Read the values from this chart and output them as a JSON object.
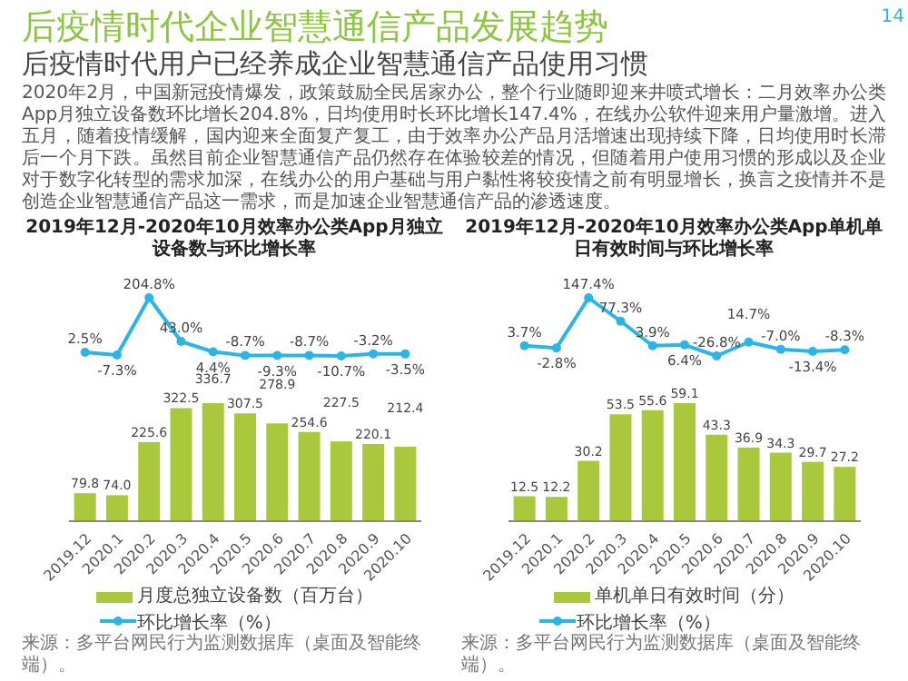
{
  "chart_data": [
    {
      "type": "other",
      "title": "后疫情时代企业智慧通信产品发展趋势",
      "subtitle": "后疫情时代用户已经养成企业智慧通信产品使用习惯",
      "annotations": [
        "2020年2月，中国新冠疫情爆发，政策鼓励全民居家办公，整个行业随即迎来井喷式增长：二月效率办公类App月独立设备数环比增长204.8%，日均使用时长环比增长147.4%，在线办公软件迎来用户量激增。进入五月，随着疫情缓解，国内迎来全面复产复工，由于效率办公产品月活增速出现持续下降，日均使用时长滞后一个月下跌。虽然目前企业智慧通信产品仍然存在体验较差的情况，但随着用户使用习惯的形成以及企业对于数字化转型的需求加深，在线办公的用户基础与用户黏性将较疫情之前有明显增长，换言之疫情并不是创造企业智慧通信产品这一需求，而是加速企业智慧通信产品的渗透速度。",
        "14"
      ]
    },
    {
      "type": "line",
      "title": "2019年12月-2020年10月效率办公类App月独立设备数与环比增长率",
      "categories": [
        "2019.12",
        "2020.1",
        "2020.2",
        "2020.3",
        "2020.4",
        "2020.5",
        "2020.6",
        "2020.7",
        "2020.8",
        "2020.9",
        "2020.10"
      ],
      "tick_labels": false,
      "data_labels": true,
      "legend": "bottom",
      "series": [
        {
          "name": "环比增长率（%）",
          "color": "#2bb5e6",
          "marker": "circle",
          "values": [
            2.5,
            -7.3,
            204.8,
            43.0,
            4.4,
            -8.7,
            -9.3,
            -8.7,
            -10.7,
            -3.2,
            -3.5
          ],
          "value_labels": [
            "2.5%",
            "-7.3%",
            "204.8%",
            "43.0%",
            "4.4%",
            "-8.7%",
            "-9.3%",
            "-8.7%",
            "-10.7%",
            "-3.2%",
            "-3.5%"
          ]
        }
      ]
    },
    {
      "type": "bar",
      "categories": [
        "2019.12",
        "2020.1",
        "2020.2",
        "2020.3",
        "2020.4",
        "2020.5",
        "2020.6",
        "2020.7",
        "2020.8",
        "2020.9",
        "2020.10"
      ],
      "data_labels": true,
      "legend": "bottom",
      "annotations": [
        "来源：多平台网民行为监测数据库（桌面及智能终端）。"
      ],
      "series": [
        {
          "name": "月度总独立设备数（百万台）",
          "color": "#a9c83c",
          "values": [
            79.8,
            74.0,
            225.6,
            322.5,
            336.7,
            307.5,
            278.9,
            254.6,
            227.5,
            220.1,
            212.4
          ],
          "value_labels": [
            "79.8",
            "74.0",
            "225.6",
            "322.5",
            "336.7",
            "307.5",
            "278.9",
            "254.6",
            "227.5",
            "220.1",
            "212.4"
          ]
        }
      ]
    },
    {
      "type": "line",
      "title": "2019年12月-2020年10月效率办公类App单机单日有效时间与环比增长率",
      "categories": [
        "2019.12",
        "2020.1",
        "2020.2",
        "2020.3",
        "2020.4",
        "2020.5",
        "2020.6",
        "2020.7",
        "2020.8",
        "2020.9",
        "2020.10"
      ],
      "tick_labels": false,
      "data_labels": true,
      "legend": "bottom",
      "series": [
        {
          "name": "环比增长率（%）",
          "color": "#2bb5e6",
          "marker": "circle",
          "values": [
            3.7,
            -2.8,
            147.4,
            77.3,
            3.9,
            6.4,
            -26.8,
            14.7,
            -7.0,
            -13.4,
            -8.3
          ],
          "value_labels": [
            "3.7%",
            "-2.8%",
            "147.4%",
            "77.3%",
            "3.9%",
            "6.4%",
            "-26.8%",
            "14.7%",
            "-7.0%",
            "-13.4%",
            "-8.3%"
          ]
        }
      ]
    },
    {
      "type": "bar",
      "categories": [
        "2019.12",
        "2020.1",
        "2020.2",
        "2020.3",
        "2020.4",
        "2020.5",
        "2020.6",
        "2020.7",
        "2020.8",
        "2020.9",
        "2020.10"
      ],
      "data_labels": true,
      "legend": "bottom",
      "annotations": [
        "来源：多平台网民行为监测数据库（桌面及智能终端）。"
      ],
      "series": [
        {
          "name": "单机单日有效时间（分）",
          "color": "#a9c83c",
          "values": [
            12.5,
            12.2,
            30.2,
            53.5,
            55.6,
            59.1,
            43.3,
            36.9,
            34.3,
            29.7,
            27.2
          ],
          "value_labels": [
            "12.5",
            "12.2",
            "30.2",
            "53.5",
            "55.6",
            "59.1",
            "43.3",
            "36.9",
            "34.3",
            "29.7",
            "27.2"
          ]
        }
      ]
    }
  ]
}
